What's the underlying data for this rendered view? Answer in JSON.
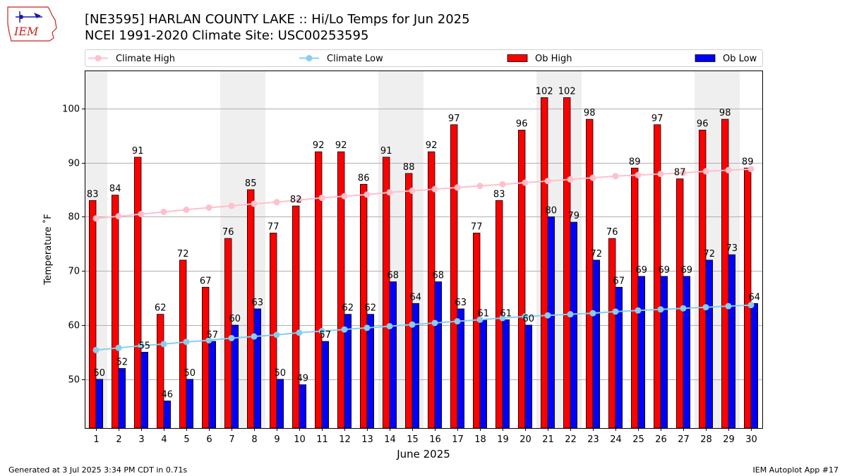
{
  "header": {
    "title_line1": "[NE3595] HARLAN COUNTY LAKE :: Hi/Lo Temps for Jun 2025",
    "title_line2": "NCEI 1991-2020 Climate Site: USC00253595",
    "logo_text": "IEM"
  },
  "footer": {
    "generated": "Generated at 3 Jul 2025 3:34 PM CDT in 0.71s",
    "app": "IEM Autoplot App #17"
  },
  "colors": {
    "ob_high": "#ff0000",
    "ob_low": "#0000ff",
    "climate_high": "#ffc0cb",
    "climate_low": "#87ceeb",
    "weekend_band": "#efefef",
    "grid": "#b0b0b0",
    "logo": "#cc2222"
  },
  "chart_data": {
    "type": "bar",
    "xlabel": "June 2025",
    "ylabel": "Temperature ˚F",
    "ylim": [
      41,
      107
    ],
    "yticks": [
      50,
      60,
      70,
      80,
      90,
      100
    ],
    "grid": "horizontal",
    "legend_position": "top",
    "categories": [
      "1",
      "2",
      "3",
      "4",
      "5",
      "6",
      "7",
      "8",
      "9",
      "10",
      "11",
      "12",
      "13",
      "14",
      "15",
      "16",
      "17",
      "18",
      "19",
      "20",
      "21",
      "22",
      "23",
      "24",
      "25",
      "26",
      "27",
      "28",
      "29",
      "30"
    ],
    "weekend_days": [
      1,
      7,
      8,
      14,
      15,
      21,
      22,
      28,
      29
    ],
    "series": [
      {
        "name": "Climate High",
        "kind": "line",
        "color": "#ffc0cb",
        "values": [
          79.7,
          80.1,
          80.5,
          80.9,
          81.3,
          81.7,
          82.0,
          82.4,
          82.7,
          83.1,
          83.5,
          83.8,
          84.1,
          84.5,
          84.8,
          85.1,
          85.4,
          85.7,
          86.0,
          86.3,
          86.6,
          86.9,
          87.2,
          87.5,
          87.7,
          87.9,
          88.1,
          88.4,
          88.6,
          88.8
        ]
      },
      {
        "name": "Climate Low",
        "kind": "line",
        "color": "#87ceeb",
        "values": [
          55.4,
          55.8,
          56.2,
          56.5,
          56.9,
          57.2,
          57.6,
          57.9,
          58.2,
          58.6,
          58.9,
          59.2,
          59.5,
          59.8,
          60.1,
          60.4,
          60.7,
          61.0,
          61.3,
          61.6,
          61.8,
          62.0,
          62.2,
          62.5,
          62.7,
          62.9,
          63.1,
          63.3,
          63.5,
          63.7
        ]
      },
      {
        "name": "Ob High",
        "kind": "bar",
        "color": "#ff0000",
        "values": [
          83,
          84,
          91,
          62,
          72,
          67,
          76,
          85,
          77,
          82,
          92,
          92,
          86,
          91,
          88,
          92,
          97,
          77,
          83,
          96,
          102,
          102,
          98,
          76,
          89,
          97,
          87,
          96,
          98,
          89
        ]
      },
      {
        "name": "Ob Low",
        "kind": "bar",
        "color": "#0000ff",
        "values": [
          50,
          52,
          55,
          46,
          50,
          57,
          60,
          63,
          50,
          49,
          57,
          62,
          62,
          68,
          64,
          68,
          63,
          61,
          61,
          60,
          80,
          79,
          72,
          67,
          69,
          69,
          69,
          72,
          73,
          64
        ]
      }
    ]
  }
}
